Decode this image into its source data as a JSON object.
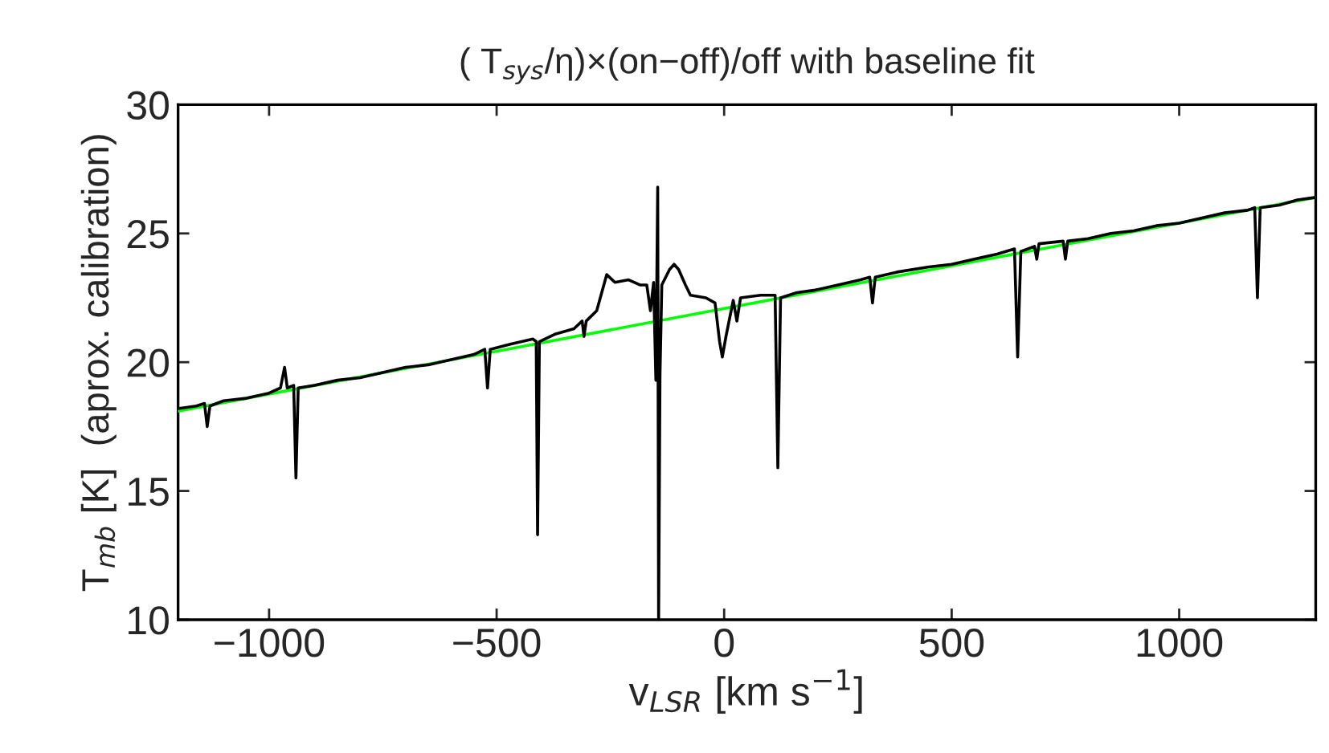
{
  "chart_data": {
    "type": "line",
    "title": "( T$_{sys}$/η)×(on−off)/off with baseline fit",
    "xlabel": "v$_{LSR}$ [km s$^{−1}$]",
    "ylabel": "T$_{mb}$ [K]  (aprox. calibration)",
    "xlim": [
      -1200,
      1300
    ],
    "xticks": [
      {
        "value": -1000,
        "label": "−1000"
      },
      {
        "value": -500,
        "label": "−500"
      },
      0,
      500,
      1000
    ],
    "ylim": [
      10,
      30
    ],
    "yticks": [
      10,
      15,
      20,
      25,
      30
    ],
    "grid": false,
    "legend": false,
    "marker": "none",
    "line_style": "solid",
    "series": [
      {
        "color": "#000000",
        "x": [
          -1200,
          -1160,
          -1142,
          -1136,
          -1130,
          -1100,
          -1050,
          -1000,
          -975,
          -966,
          -960,
          -946,
          -941,
          -936,
          -900,
          -850,
          -800,
          -750,
          -700,
          -650,
          -600,
          -550,
          -526,
          -520,
          -514,
          -470,
          -420,
          -413,
          -410,
          -406,
          -370,
          -330,
          -312,
          -308,
          -303,
          -280,
          -258,
          -240,
          -210,
          -185,
          -170,
          -162,
          -155,
          -150,
          -146,
          -144,
          -141,
          -137,
          -120,
          -110,
          -100,
          -85,
          -74,
          -40,
          -20,
          -10,
          -4,
          4,
          20,
          28,
          36,
          80,
          112,
          118,
          124,
          160,
          200,
          250,
          300,
          320,
          326,
          332,
          380,
          450,
          500,
          550,
          600,
          638,
          645,
          652,
          682,
          687,
          692,
          745,
          750,
          755,
          800,
          850,
          900,
          950,
          1000,
          1050,
          1100,
          1150,
          1166,
          1172,
          1178,
          1220,
          1260,
          1300
        ],
        "values": [
          18.2,
          18.3,
          18.4,
          17.5,
          18.3,
          18.5,
          18.6,
          18.8,
          19.0,
          19.8,
          19.0,
          19.1,
          15.5,
          19.0,
          19.1,
          19.3,
          19.4,
          19.6,
          19.8,
          19.9,
          20.1,
          20.3,
          20.5,
          19.0,
          20.5,
          20.7,
          20.9,
          20.8,
          13.3,
          20.8,
          21.1,
          21.3,
          21.6,
          21.0,
          21.6,
          22.0,
          23.4,
          23.1,
          23.2,
          23.0,
          23.0,
          22.0,
          23.1,
          19.3,
          26.8,
          10.0,
          19.5,
          23.0,
          23.6,
          23.8,
          23.6,
          23.0,
          22.6,
          22.5,
          22.3,
          20.8,
          20.2,
          21.0,
          22.4,
          21.6,
          22.5,
          22.6,
          22.6,
          15.9,
          22.5,
          22.7,
          22.8,
          23.0,
          23.2,
          23.3,
          22.3,
          23.3,
          23.5,
          23.7,
          23.8,
          24.0,
          24.2,
          24.4,
          20.2,
          24.3,
          24.5,
          24.0,
          24.6,
          24.7,
          24.0,
          24.7,
          24.8,
          25.0,
          25.1,
          25.3,
          25.4,
          25.6,
          25.8,
          25.9,
          26.0,
          22.5,
          26.0,
          26.1,
          26.3,
          26.4
        ]
      },
      {
        "color": "#00ff00",
        "x": [
          -1200,
          1300
        ],
        "values": [
          18.1,
          26.4
        ]
      }
    ]
  }
}
